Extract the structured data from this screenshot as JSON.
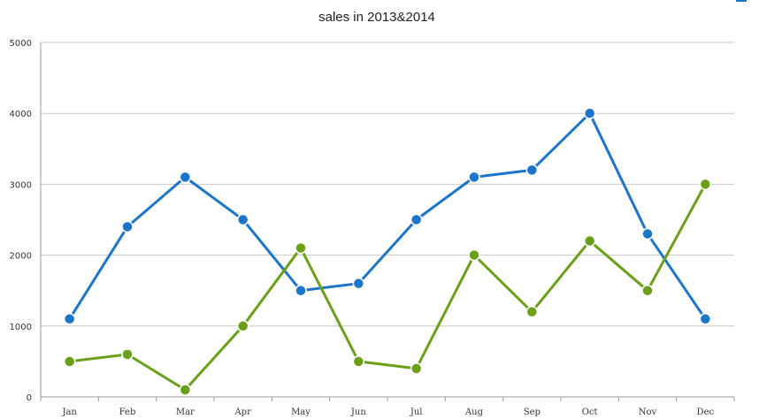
{
  "chart_data": {
    "type": "line",
    "title": "sales in 2013&2014",
    "categories": [
      "Jan",
      "Feb",
      "Mar",
      "Apr",
      "May",
      "Jun",
      "Jul",
      "Aug",
      "Sep",
      "Oct",
      "Nov",
      "Dec"
    ],
    "series": [
      {
        "values": [
          1100,
          2400,
          3100,
          2500,
          1500,
          1600,
          2500,
          3100,
          3200,
          4000,
          2300,
          1100
        ],
        "color": "#1c75c8"
      },
      {
        "values": [
          500,
          600,
          100,
          1000,
          2100,
          500,
          400,
          2000,
          1200,
          2200,
          1500,
          3000
        ],
        "color": "#6aa019"
      }
    ],
    "yticks": [
      "0",
      "1000",
      "2000",
      "3000",
      "4000",
      "5000"
    ],
    "ylim": [
      0,
      5000
    ],
    "xlabel": "",
    "ylabel": "",
    "grid": true,
    "legend": "none"
  }
}
